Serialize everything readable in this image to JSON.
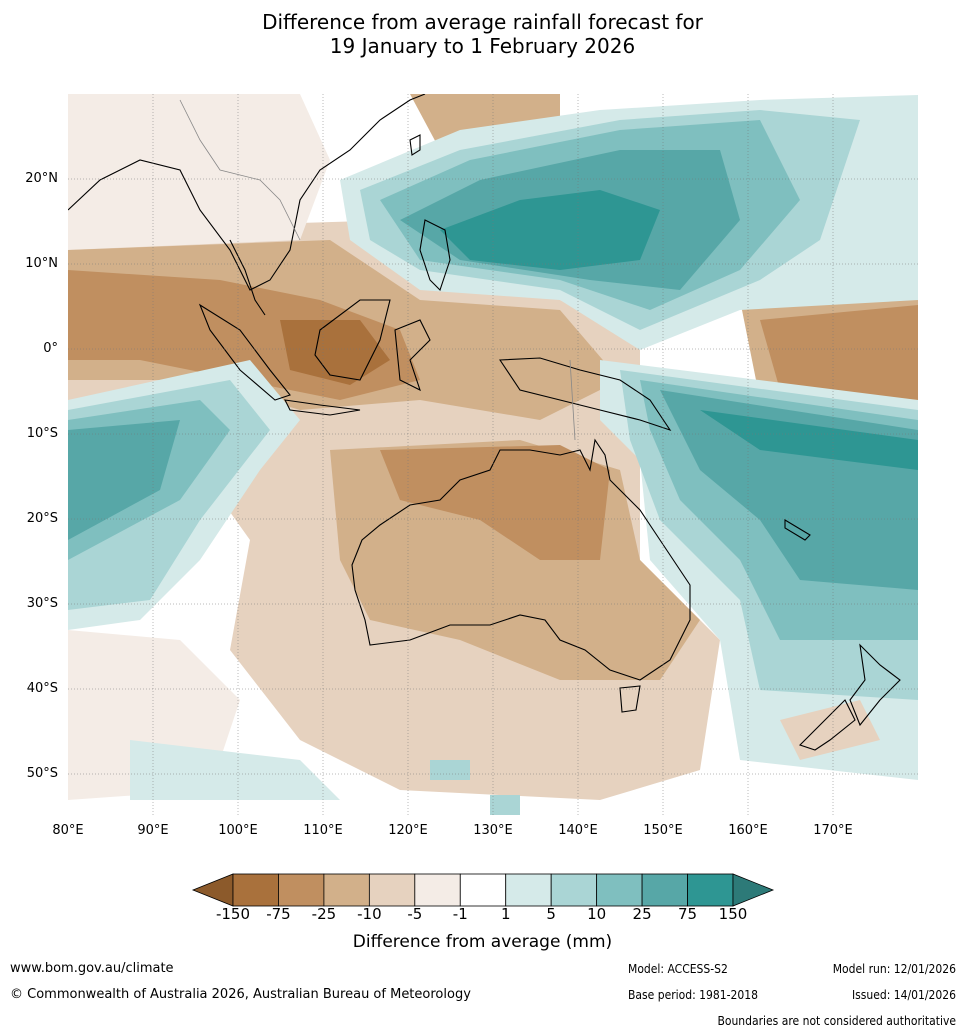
{
  "title": {
    "line1": "Difference from average rainfall forecast for",
    "line2": "19 January to 1 February 2026"
  },
  "map": {
    "lon_range": [
      80,
      180
    ],
    "lat_range": [
      -55,
      30
    ],
    "lat_ticks": [
      "20°N",
      "10°N",
      "0°",
      "10°S",
      "20°S",
      "30°S",
      "40°S",
      "50°S"
    ],
    "lon_ticks": [
      "80°E",
      "90°E",
      "100°E",
      "110°E",
      "120°E",
      "130°E",
      "140°E",
      "150°E",
      "160°E",
      "170°E"
    ],
    "grid": true,
    "ocean_color": "#ffffff"
  },
  "colorbar": {
    "labels": [
      "-150",
      "-75",
      "-25",
      "-10",
      "-5",
      "-1",
      "1",
      "5",
      "10",
      "25",
      "75",
      "150"
    ],
    "colors": [
      "#8c5a2b",
      "#a9713c",
      "#c08f60",
      "#d2b08a",
      "#e6d2bf",
      "#f4ece6",
      "#ffffff",
      "#d5eae9",
      "#aad5d5",
      "#7fbfbf",
      "#57a7a7",
      "#2e9693",
      "#2d7a78"
    ],
    "title": "Difference from average (mm)"
  },
  "footer": {
    "url": "www.bom.gov.au/climate",
    "copyright": "© Commonwealth of Australia 2026, Australian Bureau of Meteorology",
    "model": "Model: ACCESS-S2",
    "base_period": "Base period: 1981-2018",
    "model_run": "Model run: 12/01/2026",
    "issued": "Issued: 14/01/2026",
    "disclaimer": "Boundaries are not considered authoritative"
  }
}
